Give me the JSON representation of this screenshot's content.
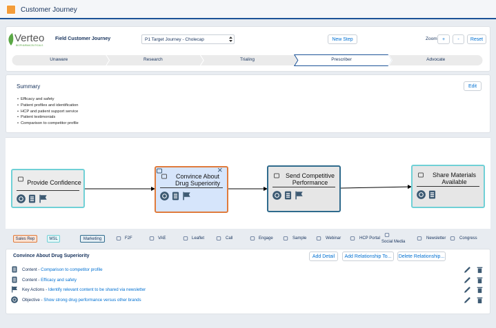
{
  "header": {
    "title": "Customer Journey"
  },
  "toolbar": {
    "brand": "Verteo",
    "brand_sub": "BIOPHARMACEUTICALS",
    "label": "Field Customer Journey",
    "journey_select": "P1 Target Journey - Cholecap",
    "new_step": "New Step",
    "zoom_label": "Zoom",
    "zoom_in": "+",
    "zoom_out": "-",
    "reset": "Reset"
  },
  "path": {
    "stages": [
      {
        "label": "Unaware"
      },
      {
        "label": "Research"
      },
      {
        "label": "Trialing"
      },
      {
        "label": "Prescriber",
        "active": true
      },
      {
        "label": "Advocate"
      }
    ]
  },
  "summary": {
    "title": "Summary",
    "edit": "Edit",
    "bullets": [
      "Efficacy and safety",
      "Patient profiles and identification",
      "HCP and patient support service",
      "Patient testimonials",
      "Comparison to competitor profile"
    ]
  },
  "nodes": [
    {
      "label": "Provide Confidence",
      "border": "#6fd0d6",
      "fill": "#ececec"
    },
    {
      "label": "Convince About Drug Superiority",
      "border": "#e07a3a",
      "fill": "#d6e5fb",
      "selected": true
    },
    {
      "label": "Send Competitive Performance",
      "border": "#2e6a8c",
      "fill": "#e6e6e6"
    },
    {
      "label": "Share Materials Available",
      "border": "#6fd0d6",
      "fill": "#e6e6e6"
    }
  ],
  "legend": {
    "roles": [
      {
        "label": "Sales Rep",
        "color": "#e07a3a",
        "fill": "#fbe3d4"
      },
      {
        "label": "MSL",
        "color": "#6fd0d6",
        "fill": "#e3f7f8"
      },
      {
        "label": "Marketing",
        "color": "#2e6a8c",
        "fill": "#e4eef4"
      }
    ],
    "channels": [
      "F2F",
      "VAE",
      "Leaflet",
      "Call",
      "Engage",
      "Sample",
      "Webinar",
      "HCP Portal",
      "Social Media",
      "Newsletter",
      "Congress"
    ]
  },
  "details": {
    "title": "Convince About Drug Superiority",
    "buttons": [
      "Add Detail",
      "Add Relationship To...",
      "Delete Relationship..."
    ],
    "rows": [
      {
        "type": "Content",
        "text": "Comparison to competitor profile"
      },
      {
        "type": "Content",
        "text": "Efficacy and safety"
      },
      {
        "type": "Key Actions",
        "text": "Identify relevant content to be shared via newsletter"
      },
      {
        "type": "Objective",
        "text": "Show strong drug performance versus other brands"
      }
    ]
  }
}
